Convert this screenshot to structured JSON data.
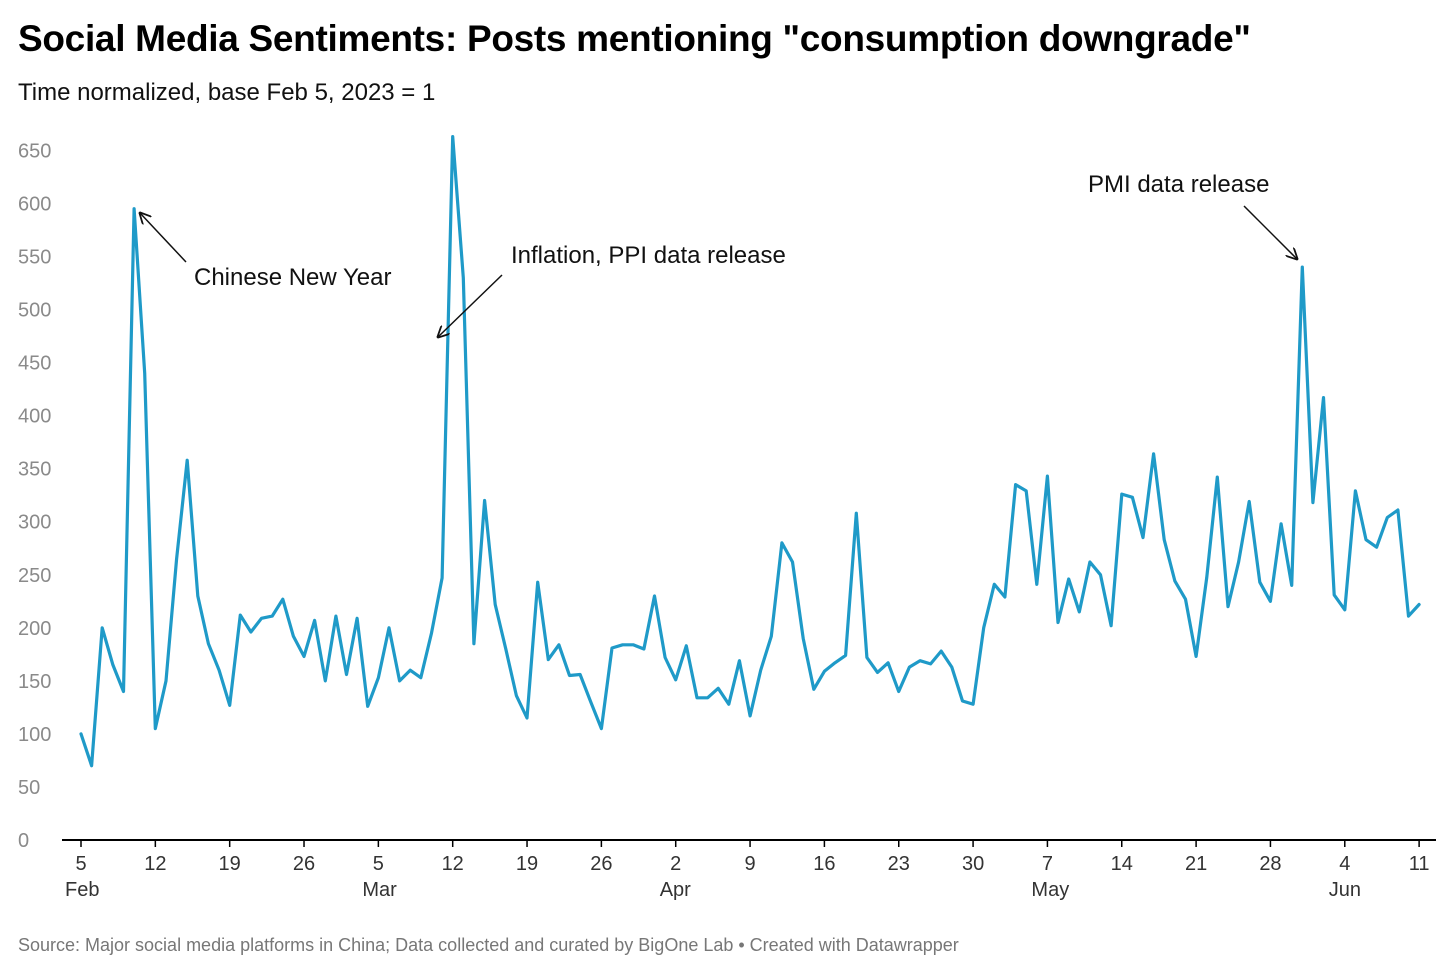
{
  "title": "Social Media Sentiments: Posts mentioning \"consumption downgrade\"",
  "subtitle": "Time normalized, base Feb 5, 2023 = 1",
  "source": "Source: Major social media platforms in China; Data collected and curated by BigOne Lab • Created with Datawrapper",
  "colors": {
    "line": "#1f9ac8",
    "axis": "#000000",
    "tick_label": "#8a8a8a"
  },
  "chart_data": {
    "type": "line",
    "title": "Social Media Sentiments: Posts mentioning \"consumption downgrade\"",
    "subtitle": "Time normalized, base Feb 5, 2023 = 1",
    "x_start": "2023-02-05",
    "ylim": [
      0,
      660
    ],
    "yticks": [
      0,
      50,
      100,
      150,
      200,
      250,
      300,
      350,
      400,
      450,
      500,
      550,
      600,
      650
    ],
    "grid": false,
    "xticks": [
      {
        "day": 0,
        "label": "5",
        "sublabel": "Feb"
      },
      {
        "day": 7,
        "label": "12",
        "sublabel": ""
      },
      {
        "day": 14,
        "label": "19",
        "sublabel": ""
      },
      {
        "day": 21,
        "label": "26",
        "sublabel": ""
      },
      {
        "day": 28,
        "label": "5",
        "sublabel": "Mar"
      },
      {
        "day": 35,
        "label": "12",
        "sublabel": ""
      },
      {
        "day": 42,
        "label": "19",
        "sublabel": ""
      },
      {
        "day": 49,
        "label": "26",
        "sublabel": ""
      },
      {
        "day": 56,
        "label": "2",
        "sublabel": "Apr"
      },
      {
        "day": 63,
        "label": "9",
        "sublabel": ""
      },
      {
        "day": 70,
        "label": "16",
        "sublabel": ""
      },
      {
        "day": 77,
        "label": "23",
        "sublabel": ""
      },
      {
        "day": 84,
        "label": "30",
        "sublabel": ""
      },
      {
        "day": 91,
        "label": "7",
        "sublabel": "May"
      },
      {
        "day": 98,
        "label": "14",
        "sublabel": ""
      },
      {
        "day": 105,
        "label": "21",
        "sublabel": ""
      },
      {
        "day": 112,
        "label": "28",
        "sublabel": ""
      },
      {
        "day": 119,
        "label": "4",
        "sublabel": "Jun"
      },
      {
        "day": 126,
        "label": "11",
        "sublabel": ""
      }
    ],
    "values": [
      100,
      70,
      200,
      165,
      140,
      595,
      440,
      105,
      150,
      265,
      358,
      230,
      185,
      160,
      127,
      212,
      196,
      209,
      211,
      227,
      192,
      173,
      207,
      150,
      211,
      156,
      209,
      126,
      153,
      200,
      150,
      160,
      153,
      195,
      247,
      663,
      530,
      185,
      320,
      222,
      180,
      136,
      115,
      243,
      170,
      184,
      155,
      156,
      130,
      105,
      181,
      184,
      184,
      180,
      230,
      172,
      151,
      183,
      134,
      134,
      143,
      128,
      169,
      117,
      160,
      192,
      280,
      262,
      190,
      142,
      159,
      167,
      174,
      308,
      172,
      158,
      167,
      140,
      163,
      169,
      166,
      178,
      163,
      131,
      128,
      200,
      241,
      229,
      335,
      329,
      241,
      343,
      205,
      246,
      215,
      262,
      250,
      202,
      326,
      323,
      285,
      364,
      283,
      244,
      227,
      173,
      247,
      342,
      220,
      262,
      319,
      243,
      225,
      298,
      240,
      540,
      318,
      417,
      231,
      217,
      329,
      283,
      276,
      304,
      311,
      211,
      222
    ],
    "annotations": [
      {
        "text": "Chinese New Year",
        "day": 5,
        "value": 595
      },
      {
        "text": "Inflation, PPI data release",
        "day": 35,
        "value": 663
      },
      {
        "text": "PMI data release",
        "day": 115,
        "value": 540
      }
    ]
  }
}
